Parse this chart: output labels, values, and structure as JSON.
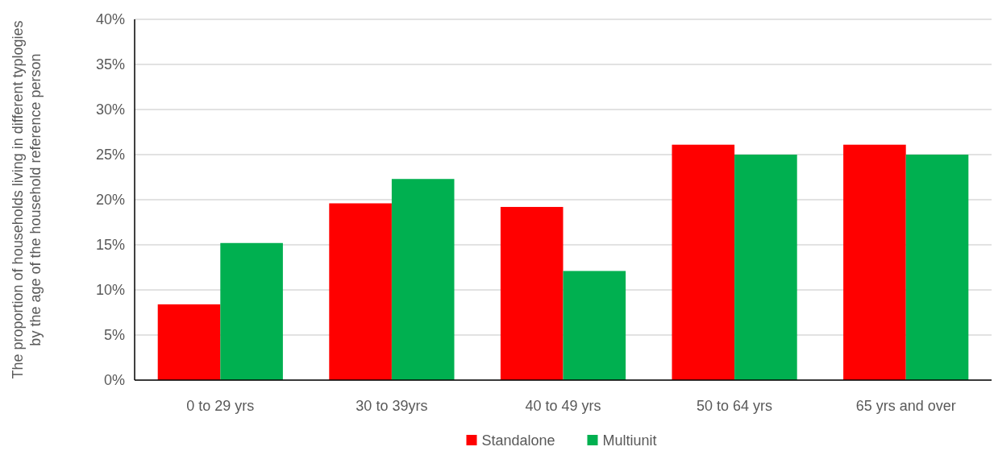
{
  "chart_data": {
    "type": "bar",
    "ylabel": "The proportion of households living in different typlogies by the age of the household reference person",
    "categories": [
      "0 to 29 yrs",
      "30 to 39yrs",
      "40 to 49 yrs",
      "50 to 64 yrs",
      "65 yrs and over"
    ],
    "series": [
      {
        "name": "Standalone",
        "color": "#ff0000",
        "values": [
          8.4,
          19.6,
          19.2,
          26.1,
          26.1
        ]
      },
      {
        "name": "Multiunit",
        "color": "#00b050",
        "values": [
          15.2,
          22.3,
          12.1,
          25.0,
          25.0
        ]
      }
    ],
    "ylim": [
      0,
      40
    ],
    "yticks": [
      {
        "value": 0,
        "label": "0%"
      },
      {
        "value": 5,
        "label": "5%"
      },
      {
        "value": 10,
        "label": "10%"
      },
      {
        "value": 15,
        "label": "15%"
      },
      {
        "value": 20,
        "label": "20%"
      },
      {
        "value": 25,
        "label": "25%"
      },
      {
        "value": 30,
        "label": "30%"
      },
      {
        "value": 35,
        "label": "35%"
      },
      {
        "value": 40,
        "label": "40%"
      }
    ],
    "grid": "y",
    "legend": "bottom"
  }
}
